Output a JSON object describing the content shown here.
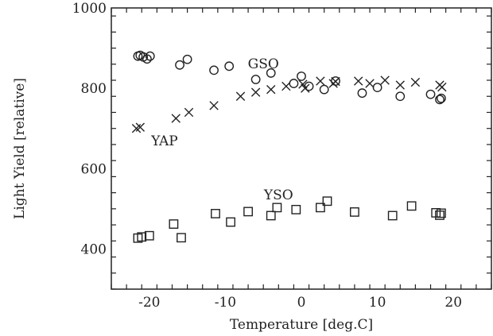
{
  "chart_data": {
    "type": "scatter",
    "title": "",
    "xlabel": "Temperature [deg.C]",
    "ylabel": "Light Yield [relative]",
    "xlim": [
      -25,
      25
    ],
    "ylim": [
      300,
      1000
    ],
    "x_major_ticks": [
      -20,
      -10,
      0,
      10,
      20
    ],
    "y_major_ticks": [
      400,
      600,
      800,
      1000
    ],
    "x_minor_step": 2,
    "y_minor_step": 40,
    "grid": false,
    "legend": "none",
    "series": [
      {
        "name": "GSO",
        "marker": "circle",
        "label_at": [
          -5,
          850
        ],
        "points": [
          [
            -21.5,
            880
          ],
          [
            -21.2,
            882
          ],
          [
            -20.8,
            878
          ],
          [
            -20.3,
            873
          ],
          [
            -19.9,
            880
          ],
          [
            -16,
            858
          ],
          [
            -15,
            872
          ],
          [
            -11.5,
            845
          ],
          [
            -9.5,
            855
          ],
          [
            -6,
            822
          ],
          [
            -4,
            838
          ],
          [
            -1,
            812
          ],
          [
            0,
            830
          ],
          [
            1,
            805
          ],
          [
            3,
            797
          ],
          [
            4.5,
            818
          ],
          [
            8,
            788
          ],
          [
            10,
            802
          ],
          [
            13,
            780
          ],
          [
            17,
            785
          ],
          [
            18.2,
            772
          ],
          [
            18.4,
            775
          ]
        ]
      },
      {
        "name": "YAP",
        "marker": "cross",
        "label_at": [
          -18,
          658
        ],
        "points": [
          [
            -21.7,
            700
          ],
          [
            -21.2,
            703
          ],
          [
            -16.5,
            725
          ],
          [
            -14.8,
            740
          ],
          [
            -11.5,
            757
          ],
          [
            -8,
            780
          ],
          [
            -6,
            790
          ],
          [
            -4,
            797
          ],
          [
            -2,
            805
          ],
          [
            0.2,
            810
          ],
          [
            0.5,
            800
          ],
          [
            2.5,
            818
          ],
          [
            4.2,
            812
          ],
          [
            4.5,
            817
          ],
          [
            7.5,
            818
          ],
          [
            9,
            812
          ],
          [
            11,
            820
          ],
          [
            13,
            808
          ],
          [
            15,
            815
          ],
          [
            18.2,
            808
          ],
          [
            18.5,
            803
          ]
        ]
      },
      {
        "name": "YSO",
        "marker": "square",
        "label_at": [
          -3,
          523
        ],
        "points": [
          [
            -21.5,
            427
          ],
          [
            -21,
            430
          ],
          [
            -20,
            433
          ],
          [
            -16.8,
            462
          ],
          [
            -15.8,
            428
          ],
          [
            -11.3,
            488
          ],
          [
            -9.3,
            467
          ],
          [
            -7,
            493
          ],
          [
            -4,
            483
          ],
          [
            -3.2,
            503
          ],
          [
            -0.7,
            498
          ],
          [
            2.5,
            503
          ],
          [
            3.4,
            519
          ],
          [
            7,
            492
          ],
          [
            12,
            483
          ],
          [
            14.5,
            507
          ],
          [
            17.7,
            490
          ],
          [
            18.2,
            484
          ],
          [
            18.4,
            489
          ]
        ]
      }
    ]
  }
}
